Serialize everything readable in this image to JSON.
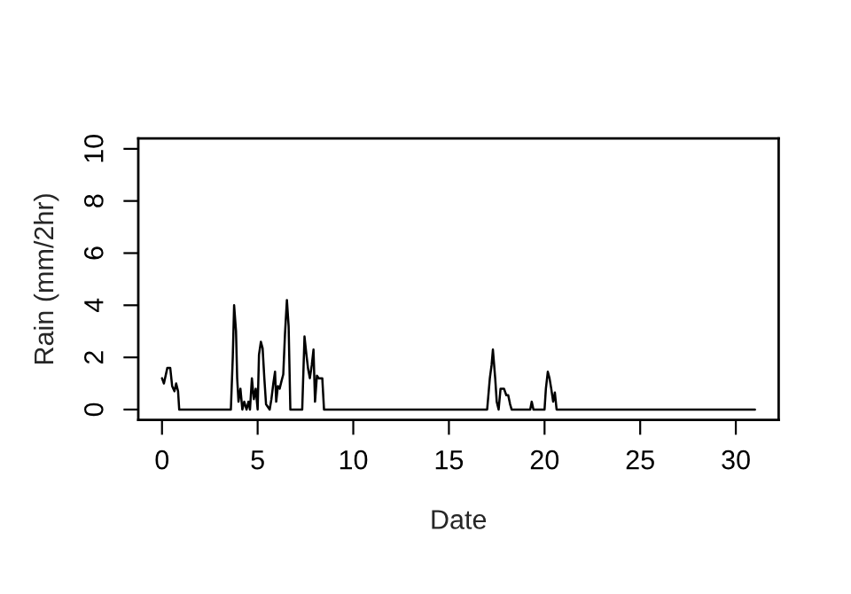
{
  "chart_data": {
    "type": "line",
    "xlabel": "Date",
    "ylabel": "Rain (mm/2hr)",
    "x": [
      0,
      0.1,
      0.28,
      0.43,
      0.53,
      0.65,
      0.74,
      0.84,
      0.9,
      1.05,
      3.6,
      3.7,
      3.77,
      3.87,
      3.93,
      4.0,
      4.1,
      4.2,
      4.3,
      4.42,
      4.52,
      4.6,
      4.7,
      4.8,
      4.9,
      5.0,
      5.07,
      5.17,
      5.26,
      5.35,
      5.44,
      5.63,
      5.72,
      5.82,
      5.91,
      5.97,
      6.06,
      6.15,
      6.25,
      6.34,
      6.43,
      6.53,
      6.62,
      6.71,
      7.33,
      7.45,
      7.55,
      7.64,
      7.73,
      7.83,
      7.92,
      8.0,
      8.1,
      8.2,
      8.29,
      8.38,
      8.47,
      17.0,
      17.14,
      17.23,
      17.3,
      17.42,
      17.5,
      17.6,
      17.7,
      17.88,
      18.0,
      18.1,
      18.2,
      18.28,
      19.25,
      19.33,
      19.42,
      20.0,
      20.07,
      20.17,
      20.26,
      20.35,
      20.45,
      20.54,
      20.63,
      31.0
    ],
    "series": [
      {
        "color": "#000000",
        "values": [
          1.2,
          1.0,
          1.6,
          1.6,
          0.9,
          0.7,
          1.0,
          0.7,
          0,
          0,
          0,
          2.0,
          4.0,
          3.0,
          1.2,
          0.3,
          0.8,
          0,
          0.3,
          0,
          0.3,
          0,
          1.2,
          0.4,
          0.8,
          0,
          2.1,
          2.6,
          2.35,
          1.2,
          0.2,
          0,
          0.4,
          1.0,
          1.45,
          0.3,
          0.9,
          0.8,
          1.1,
          1.35,
          2.9,
          4.2,
          3.2,
          0,
          0,
          2.8,
          2.1,
          1.55,
          1.2,
          1.7,
          2.3,
          0.3,
          1.3,
          1.2,
          1.2,
          1.2,
          0,
          0,
          1.2,
          1.7,
          2.3,
          1.2,
          0.3,
          0,
          0.8,
          0.8,
          0.55,
          0.55,
          0.2,
          0,
          0,
          0.3,
          0,
          0,
          0.8,
          1.45,
          1.2,
          0.8,
          0.3,
          0.65,
          0,
          0
        ]
      }
    ],
    "xlim": [
      -1.24,
      32.24
    ],
    "xticks": [
      0,
      5,
      10,
      15,
      20,
      25,
      30
    ],
    "ylim": [
      -0.4,
      10.4
    ],
    "yticks": [
      0,
      2,
      4,
      6,
      8,
      10
    ],
    "grid": false,
    "marker": "none",
    "line_style": "solid"
  }
}
